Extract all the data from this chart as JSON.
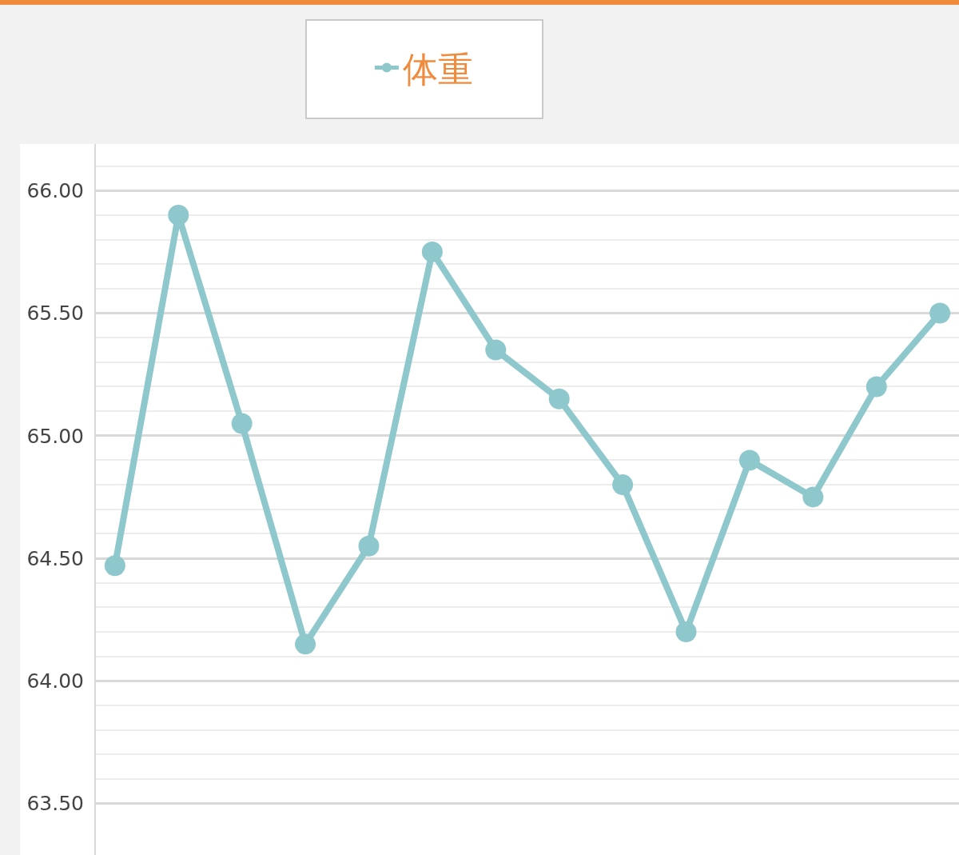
{
  "chart_data": {
    "type": "line",
    "categories": [
      null,
      null,
      null,
      null,
      null,
      null,
      null,
      null,
      null,
      null,
      null,
      null,
      null,
      null
    ],
    "series": [
      {
        "name": "体重",
        "color": "#8fc8cc",
        "values": [
          64.47,
          65.9,
          65.05,
          64.15,
          64.55,
          65.75,
          65.35,
          65.15,
          64.8,
          64.2,
          64.9,
          64.75,
          65.2,
          65.5
        ]
      }
    ],
    "ylim": [
      63.29,
      66.19
    ],
    "yticks": [
      {
        "value": 63.5,
        "label": "63.50"
      },
      {
        "value": 63.6,
        "label": null
      },
      {
        "value": 63.7,
        "label": null
      },
      {
        "value": 63.8,
        "label": null
      },
      {
        "value": 63.9,
        "label": null
      },
      {
        "value": 64.0,
        "label": "64.00"
      },
      {
        "value": 64.1,
        "label": null
      },
      {
        "value": 64.2,
        "label": null
      },
      {
        "value": 64.3,
        "label": null
      },
      {
        "value": 64.4,
        "label": null
      },
      {
        "value": 64.5,
        "label": "64.50"
      },
      {
        "value": 64.6,
        "label": null
      },
      {
        "value": 64.7,
        "label": null
      },
      {
        "value": 64.8,
        "label": null
      },
      {
        "value": 64.9,
        "label": null
      },
      {
        "value": 65.0,
        "label": "65.00"
      },
      {
        "value": 65.1,
        "label": null
      },
      {
        "value": 65.2,
        "label": null
      },
      {
        "value": 65.3,
        "label": null
      },
      {
        "value": 65.4,
        "label": null
      },
      {
        "value": 65.5,
        "label": "65.50"
      },
      {
        "value": 65.6,
        "label": null
      },
      {
        "value": 65.7,
        "label": null
      },
      {
        "value": 65.8,
        "label": null
      },
      {
        "value": 65.9,
        "label": null
      },
      {
        "value": 66.0,
        "label": "66.00"
      },
      {
        "value": 66.1,
        "label": null
      }
    ],
    "grid": "y",
    "legend": "top",
    "marker": "circle",
    "line_style": "solid",
    "tick_labels": "y"
  }
}
